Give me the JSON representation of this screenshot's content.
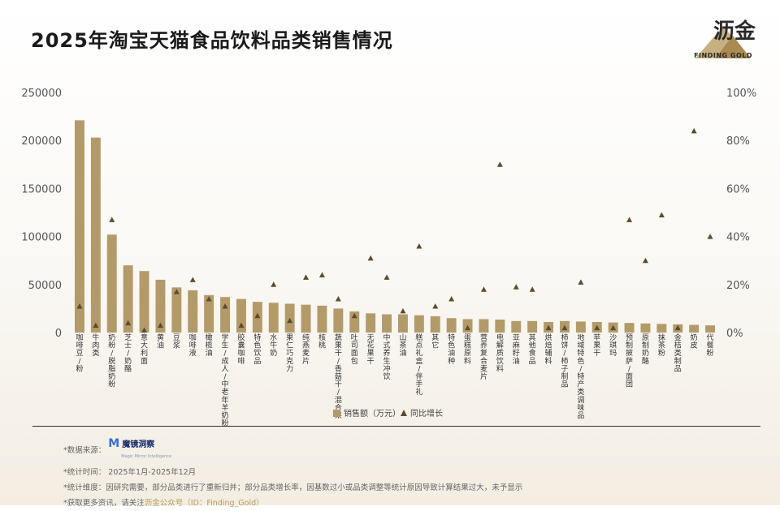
{
  "title": "2025年淘宝天猫食品饮料品类销售情况",
  "brand": {
    "name": "沥金",
    "subtitle": "FINDING GOLD"
  },
  "colors": {
    "bar": "#b39a69",
    "marker": "#5e4b2d",
    "axis_text": "#555555"
  },
  "chart_data": {
    "type": "bar",
    "categories": [
      "咖啡豆/粉",
      "牛肉类",
      "奶粉/脱脂奶粉",
      "芝士/奶酪",
      "意大利面",
      "黄油",
      "豆浆",
      "咖啡液",
      "橄榄油",
      "学生/成人/中老年羊奶粉",
      "胶囊咖啡",
      "特色饮品",
      "水牛奶",
      "果仁巧克力",
      "纯燕麦片",
      "核桃",
      "蔬果干/香菇干/混合果",
      "吐司面包",
      "无花果干",
      "中式养生冲饮",
      "山茶油",
      "糕点礼盒/伴手礼",
      "其它",
      "特色油种",
      "蛋糕原料",
      "营养复合麦片",
      "电解质饮料",
      "亚麻籽油",
      "其他食品",
      "烘焙辅料",
      "柿饼/柿子制品",
      "地域特色/特产类调味品",
      "苹果干",
      "沙琪玛",
      "预制披萨/面团",
      "原制奶酪",
      "抹茶粉",
      "金桔类制品",
      "奶皮",
      "代餐粉"
    ],
    "series": [
      {
        "name": "销售额（万元）",
        "type": "bar",
        "axis": "left",
        "values": [
          221000,
          203000,
          102000,
          70000,
          64000,
          55000,
          47000,
          44000,
          39000,
          37000,
          35000,
          32000,
          31000,
          30000,
          29000,
          28000,
          25000,
          22000,
          20000,
          19000,
          19000,
          18000,
          17000,
          15000,
          14000,
          14000,
          13500,
          12000,
          12000,
          11000,
          12000,
          11500,
          11000,
          10500,
          10000,
          9500,
          9000,
          8500,
          8000,
          7500
        ]
      },
      {
        "name": "同比增长",
        "type": "scatter",
        "axis": "right",
        "values": [
          0.11,
          0.03,
          0.47,
          0.04,
          0.01,
          0.03,
          0.17,
          0.22,
          0.14,
          0.11,
          0.03,
          0.07,
          0.2,
          0.05,
          0.23,
          0.24,
          0.14,
          0.07,
          0.31,
          0.23,
          0.09,
          0.36,
          0.11,
          0.14,
          0.02,
          0.18,
          0.7,
          0.19,
          0.18,
          0.02,
          0.02,
          0.21,
          0.02,
          0.02,
          0.47,
          0.3,
          0.49,
          0.02,
          0.84,
          0.4
        ]
      }
    ],
    "y_left": {
      "ticks": [
        0,
        50000,
        100000,
        150000,
        200000,
        250000
      ],
      "ylim": [
        0,
        250000
      ]
    },
    "y_right": {
      "ticks": [
        "0%",
        "20%",
        "40%",
        "60%",
        "80%",
        "100%"
      ],
      "ylim": [
        0,
        1
      ]
    },
    "legend": {
      "placement": "bottom-center",
      "items": [
        "销售额（万元）",
        "同比增长"
      ]
    }
  },
  "footnotes": {
    "source_label": "*数据来源：",
    "source_name": "魔镜洞察",
    "source_sub": "Magic Mirror Intelligence",
    "period": "*统计时间： 2025年1月-2025年12月",
    "dimension": "*统计维度：因研究需要，部分品类进行了重新归并；部分品类增长率，因基数过小或品类调整等统计原因导致计算结果过大，未予显示",
    "more_prefix": "*获取更多资讯，请关注",
    "more_accent": "沥金公众号（ID：Finding_Gold）"
  }
}
